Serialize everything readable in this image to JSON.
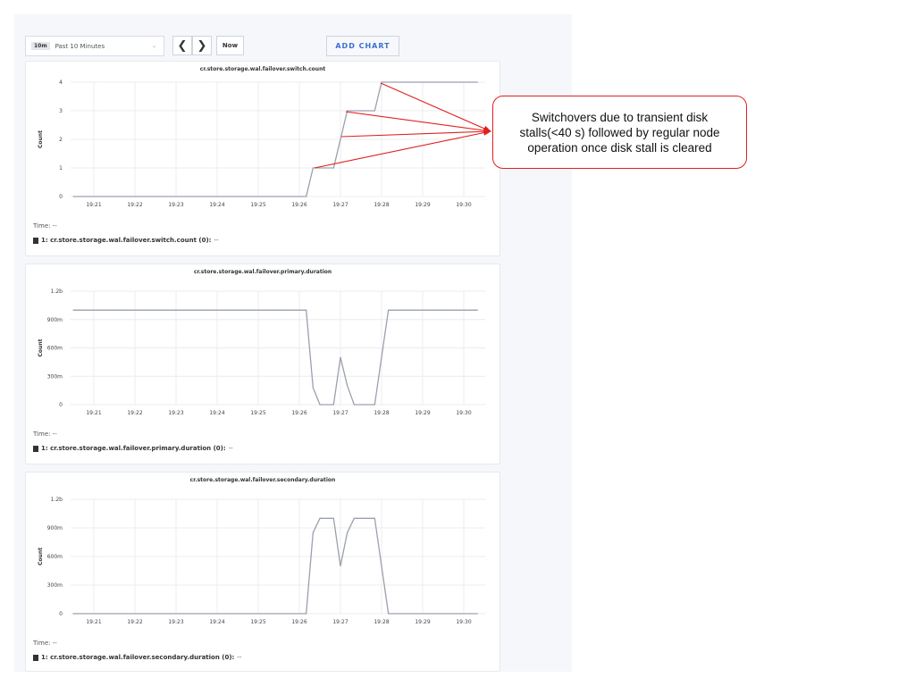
{
  "toolbar": {
    "range_badge": "10m",
    "range_label": "Past 10 Minutes",
    "prev_icon": "chevron-left-icon",
    "next_icon": "chevron-right-icon",
    "now_label": "Now",
    "add_chart_label": "ADD CHART"
  },
  "annotation": {
    "text": "Switchovers due to transient disk stalls(<40 s) followed by regular node operation once disk stall is cleared",
    "color": "#e02020"
  },
  "chart_data": [
    {
      "type": "line",
      "title": "cr.store.storage.wal.failover.switch.count",
      "ylabel": "Count",
      "ylim": [
        0,
        4
      ],
      "yticks": [
        "0",
        "1",
        "2",
        "3",
        "4"
      ],
      "ytick_values": [
        0,
        1,
        2,
        3,
        4
      ],
      "xticks": [
        "19:21",
        "19:22",
        "19:23",
        "19:24",
        "19:25",
        "19:26",
        "19:27",
        "19:28",
        "19:29",
        "19:30"
      ],
      "grid": true,
      "time_label": "Time:",
      "time_value": "--",
      "legend": "1: cr.store.storage.wal.failover.switch.count (0):",
      "legend_value": "--",
      "series": [
        {
          "x": [
            "19:20:30",
            "19:26:10",
            "19:26:20",
            "19:26:50",
            "19:27:10",
            "19:27:50",
            "19:28:00",
            "19:30:20"
          ],
          "y": [
            0,
            0,
            1,
            1,
            3,
            3,
            4,
            4
          ]
        }
      ]
    },
    {
      "type": "line",
      "title": "cr.store.storage.wal.failover.primary.duration",
      "ylabel": "Count",
      "ylim": [
        0,
        1.2
      ],
      "yticks": [
        "0",
        "300m",
        "600m",
        "900m",
        "1.2b"
      ],
      "ytick_values": [
        0,
        0.3,
        0.6,
        0.9,
        1.2
      ],
      "xticks": [
        "19:21",
        "19:22",
        "19:23",
        "19:24",
        "19:25",
        "19:26",
        "19:27",
        "19:28",
        "19:29",
        "19:30"
      ],
      "grid": true,
      "time_label": "Time:",
      "time_value": "--",
      "legend": "1: cr.store.storage.wal.failover.primary.duration (0):",
      "legend_value": "--",
      "series": [
        {
          "x": [
            "19:20:30",
            "19:26:10",
            "19:26:20",
            "19:26:30",
            "19:26:50",
            "19:27:00",
            "19:27:10",
            "19:27:20",
            "19:27:50",
            "19:28:10",
            "19:30:20"
          ],
          "y": [
            1.0,
            1.0,
            0.18,
            0,
            0,
            0.5,
            0.2,
            0,
            0,
            1.0,
            1.0
          ]
        }
      ]
    },
    {
      "type": "line",
      "title": "cr.store.storage.wal.failover.secondary.duration",
      "ylabel": "Count",
      "ylim": [
        0,
        1.2
      ],
      "yticks": [
        "0",
        "300m",
        "600m",
        "900m",
        "1.2b"
      ],
      "ytick_values": [
        0,
        0.3,
        0.6,
        0.9,
        1.2
      ],
      "xticks": [
        "19:21",
        "19:22",
        "19:23",
        "19:24",
        "19:25",
        "19:26",
        "19:27",
        "19:28",
        "19:29",
        "19:30"
      ],
      "grid": true,
      "time_label": "Time:",
      "time_value": "--",
      "legend": "1: cr.store.storage.wal.failover.secondary.duration (0):",
      "legend_value": "--",
      "series": [
        {
          "x": [
            "19:20:30",
            "19:26:10",
            "19:26:20",
            "19:26:30",
            "19:26:50",
            "19:27:00",
            "19:27:10",
            "19:27:20",
            "19:27:50",
            "19:28:00",
            "19:28:10",
            "19:30:20"
          ],
          "y": [
            0,
            0,
            0.85,
            1.0,
            1.0,
            0.5,
            0.85,
            1.0,
            1.0,
            0.5,
            0,
            0
          ]
        }
      ]
    }
  ]
}
